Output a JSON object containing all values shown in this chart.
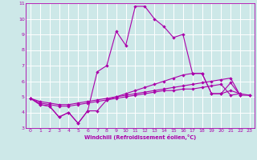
{
  "xlabel": "Windchill (Refroidissement éolien,°C)",
  "xlim": [
    -0.5,
    23.5
  ],
  "ylim": [
    3,
    11
  ],
  "xticks": [
    0,
    1,
    2,
    3,
    4,
    5,
    6,
    7,
    8,
    9,
    10,
    11,
    12,
    13,
    14,
    15,
    16,
    17,
    18,
    19,
    20,
    21,
    22,
    23
  ],
  "yticks": [
    3,
    4,
    5,
    6,
    7,
    8,
    9,
    10,
    11
  ],
  "bg_color": "#cde8e8",
  "line_color": "#aa00aa",
  "grid_color": "#ffffff",
  "series": [
    {
      "x": [
        0,
        1,
        2,
        3,
        4,
        5,
        6,
        7,
        8,
        9,
        10,
        11,
        12,
        13,
        14,
        15,
        16,
        17,
        18,
        19,
        20,
        21,
        22
      ],
      "y": [
        4.9,
        4.5,
        4.4,
        3.7,
        4.0,
        3.3,
        4.1,
        6.6,
        7.0,
        9.2,
        8.3,
        10.8,
        10.8,
        10.0,
        9.5,
        8.8,
        9.0,
        6.5,
        6.5,
        5.2,
        5.2,
        5.9,
        5.1
      ]
    },
    {
      "x": [
        0,
        1,
        2,
        3,
        4,
        5,
        6,
        7,
        8,
        9,
        10,
        11,
        12,
        13,
        14,
        15,
        16,
        17,
        18,
        19,
        20,
        21,
        22
      ],
      "y": [
        4.9,
        4.5,
        4.4,
        3.7,
        4.0,
        3.3,
        4.1,
        4.1,
        4.8,
        5.0,
        5.2,
        5.4,
        5.6,
        5.8,
        6.0,
        6.2,
        6.4,
        6.5,
        6.5,
        5.2,
        5.2,
        5.4,
        5.2
      ]
    },
    {
      "x": [
        0,
        1,
        2,
        3,
        4,
        5,
        6,
        7,
        8,
        9,
        10,
        11,
        12,
        13,
        14,
        15,
        16,
        17,
        18,
        19,
        20,
        21,
        22,
        23
      ],
      "y": [
        4.9,
        4.7,
        4.6,
        4.5,
        4.5,
        4.6,
        4.7,
        4.8,
        4.9,
        5.0,
        5.1,
        5.2,
        5.3,
        5.4,
        5.5,
        5.6,
        5.7,
        5.8,
        5.9,
        6.0,
        6.1,
        6.2,
        5.1,
        5.1
      ]
    },
    {
      "x": [
        0,
        1,
        2,
        3,
        4,
        5,
        6,
        7,
        8,
        9,
        10,
        11,
        12,
        13,
        14,
        15,
        16,
        17,
        18,
        19,
        20,
        21,
        22,
        23
      ],
      "y": [
        4.9,
        4.6,
        4.5,
        4.4,
        4.4,
        4.5,
        4.6,
        4.7,
        4.8,
        4.9,
        5.0,
        5.1,
        5.2,
        5.3,
        5.4,
        5.4,
        5.5,
        5.5,
        5.6,
        5.7,
        5.8,
        5.1,
        5.2,
        5.1
      ]
    }
  ]
}
